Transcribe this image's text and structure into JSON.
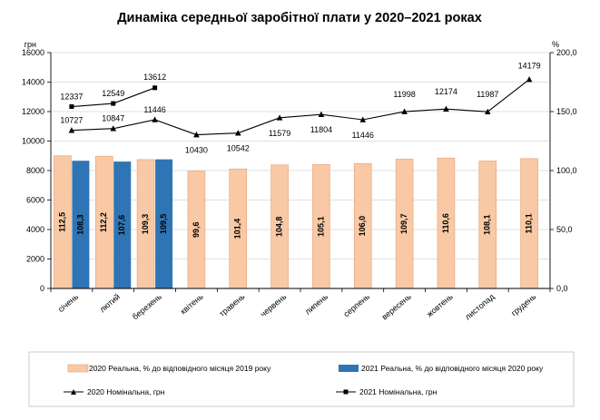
{
  "chart_data": {
    "type": "bar",
    "title": "Динаміка середньої заробітної плати у 2020–2021 роках",
    "left_axis_unit": "грн",
    "right_axis_unit": "%",
    "ylim_left": [
      0,
      16000
    ],
    "ylim_right": [
      0,
      200
    ],
    "left_ticks": [
      "0",
      "2000",
      "4000",
      "6000",
      "8000",
      "10000",
      "12000",
      "14000",
      "16000"
    ],
    "left_tick_values": [
      0,
      2000,
      4000,
      6000,
      8000,
      10000,
      12000,
      14000,
      16000
    ],
    "right_ticks": [
      "0,0",
      "50,0",
      "100,0",
      "150,0",
      "200,0"
    ],
    "right_tick_values": [
      0,
      50,
      100,
      150,
      200
    ],
    "categories": [
      "січень",
      "лютий",
      "березень",
      "квітень",
      "травень",
      "червень",
      "липень",
      "серпень",
      "вересень",
      "жовтень",
      "листопад",
      "грудень"
    ],
    "bar_series": [
      {
        "name": "2020 Реальна, % до відповідного місяця 2019 року",
        "axis": "right",
        "color": "#f8c9a4",
        "values": [
          112.5,
          112.2,
          109.3,
          99.6,
          101.4,
          104.8,
          105.1,
          106.0,
          109.7,
          110.6,
          108.1,
          110.1
        ],
        "labels": [
          "112,5",
          "112,2",
          "109,3",
          "99,6",
          "101,4",
          "104,8",
          "105,1",
          "106,0",
          "109,7",
          "110,6",
          "108,1",
          "110,1"
        ]
      },
      {
        "name": "2021 Реальна, % до відповідного місяця 2020 року",
        "axis": "right",
        "color": "#2f75b5",
        "values": [
          108.3,
          107.6,
          109.5
        ],
        "labels": [
          "108,3",
          "107,6",
          "109,5"
        ]
      }
    ],
    "line_series": [
      {
        "name": "2020 Номінальна, грн",
        "axis": "left",
        "marker": "triangle",
        "values": [
          10727,
          10847,
          11446,
          10430,
          10542,
          11579,
          11804,
          11446,
          11998,
          12174,
          11987,
          14179
        ],
        "labels": [
          "10727",
          "10847",
          "11446",
          "10430",
          "10542",
          "11579",
          "11804",
          "11446",
          "11998",
          "12174",
          "11987",
          "14179"
        ]
      },
      {
        "name": "2021 Номінальна, грн",
        "axis": "left",
        "marker": "square",
        "values": [
          12337,
          12549,
          13612
        ],
        "labels": [
          "12337",
          "12549",
          "13612"
        ]
      }
    ]
  }
}
